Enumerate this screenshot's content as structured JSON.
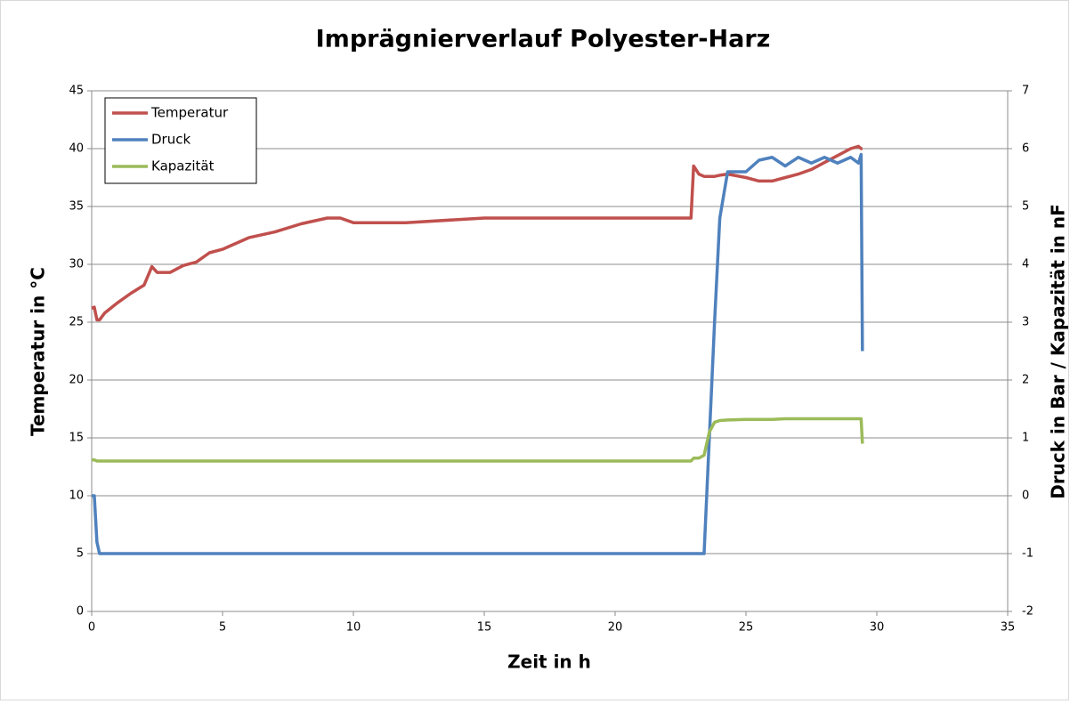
{
  "chart_data": {
    "type": "line",
    "title": "Imprägnierverlauf  Polyester-Harz",
    "x_label": "Zeit in h",
    "y_label": "Temperatur in °C",
    "y2_label": "Druck in Bar / Kapazität in nF",
    "x": [
      0,
      0.1,
      0.2,
      0.3,
      0.5,
      1,
      1.5,
      2,
      2.3,
      2.5,
      3,
      3.5,
      4,
      4.5,
      5,
      5.5,
      6,
      7,
      8,
      9,
      9.5,
      10,
      12,
      15,
      20,
      22.9,
      23.0,
      23.2,
      23.4,
      23.6,
      23.8,
      24.0,
      24.3,
      25,
      25.5,
      26,
      26.5,
      27,
      27.5,
      28,
      28.5,
      29,
      29.3,
      29.4,
      29.45
    ],
    "series": [
      {
        "name": "Temperatur",
        "color": "#c0504d",
        "values": [
          26.2,
          26.3,
          25.2,
          25.2,
          25.8,
          26.7,
          27.5,
          28.2,
          29.8,
          29.3,
          29.3,
          29.9,
          30.2,
          31,
          31.3,
          31.8,
          32.3,
          32.8,
          33.5,
          34,
          34,
          33.6,
          33.6,
          34,
          34,
          34,
          38.5,
          37.8,
          37.6,
          37.6,
          37.6,
          37.7,
          37.8,
          37.5,
          37.2,
          37.2,
          37.5,
          37.8,
          38.2,
          38.8,
          39.4,
          40,
          40.2,
          40,
          40
        ]
      },
      {
        "name": "Druck",
        "color": "#4f81bd",
        "axis": "y2",
        "values": [
          0,
          0,
          -0.8,
          -1,
          -1,
          -1,
          -1,
          -1,
          -1,
          -1,
          -1,
          -1,
          -1,
          -1,
          -1,
          -1,
          -1,
          -1,
          -1,
          -1,
          -1,
          -1,
          -1,
          -1,
          -1,
          -1,
          -1,
          -1,
          -1,
          1,
          3,
          4.8,
          5.6,
          5.6,
          5.8,
          5.85,
          5.7,
          5.85,
          5.75,
          5.85,
          5.75,
          5.85,
          5.75,
          5.9,
          2.5
        ]
      },
      {
        "name": "Kapazität",
        "color": "#9bbb59",
        "axis": "y2",
        "values": [
          0.62,
          0.62,
          0.6,
          0.6,
          0.6,
          0.6,
          0.6,
          0.6,
          0.6,
          0.6,
          0.6,
          0.6,
          0.6,
          0.6,
          0.6,
          0.6,
          0.6,
          0.6,
          0.6,
          0.6,
          0.6,
          0.6,
          0.6,
          0.6,
          0.6,
          0.6,
          0.65,
          0.65,
          0.7,
          1.1,
          1.27,
          1.3,
          1.31,
          1.32,
          1.32,
          1.32,
          1.33,
          1.33,
          1.33,
          1.33,
          1.33,
          1.33,
          1.33,
          1.33,
          0.9
        ]
      }
    ],
    "xlim": [
      0,
      35
    ],
    "xticks": [
      0,
      5,
      10,
      15,
      20,
      25,
      30,
      35
    ],
    "ylim": [
      0,
      45
    ],
    "yticks": [
      0,
      5,
      10,
      15,
      20,
      25,
      30,
      35,
      40,
      45
    ],
    "y2lim": [
      -2,
      7
    ],
    "y2ticks": [
      -2,
      -1,
      0,
      1,
      2,
      3,
      4,
      5,
      6,
      7
    ],
    "grid": true,
    "legend": "top-left"
  }
}
